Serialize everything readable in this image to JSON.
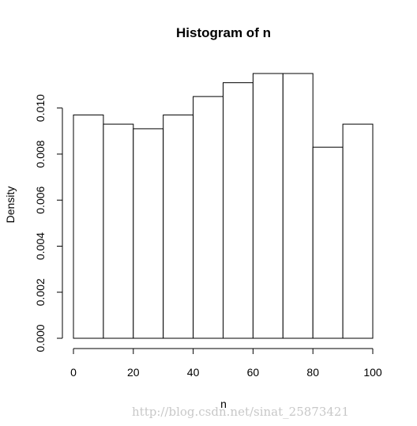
{
  "chart_data": {
    "type": "bar",
    "title": "Histogram of n",
    "xlabel": "n",
    "ylabel": "Density",
    "bin_edges": [
      0,
      10,
      20,
      30,
      40,
      50,
      60,
      70,
      80,
      90,
      100
    ],
    "values": [
      0.0097,
      0.0093,
      0.0091,
      0.0097,
      0.0105,
      0.0111,
      0.0115,
      0.0115,
      0.0083,
      0.0093
    ],
    "xlim": [
      0,
      100
    ],
    "ylim": [
      0,
      0.0115
    ],
    "x_ticks": [
      0,
      20,
      40,
      60,
      80,
      100
    ],
    "x_tick_labels": [
      "0",
      "20",
      "40",
      "60",
      "80",
      "100"
    ],
    "y_ticks": [
      0,
      0.002,
      0.004,
      0.006,
      0.008,
      0.01
    ],
    "y_tick_labels": [
      "0.000",
      "0.002",
      "0.004",
      "0.006",
      "0.008",
      "0.010"
    ],
    "grid": false,
    "legend": "none",
    "bar_fill": "#ffffff",
    "bar_stroke": "#000000"
  },
  "watermark": "http://blog.csdn.net/sinat_25873421"
}
